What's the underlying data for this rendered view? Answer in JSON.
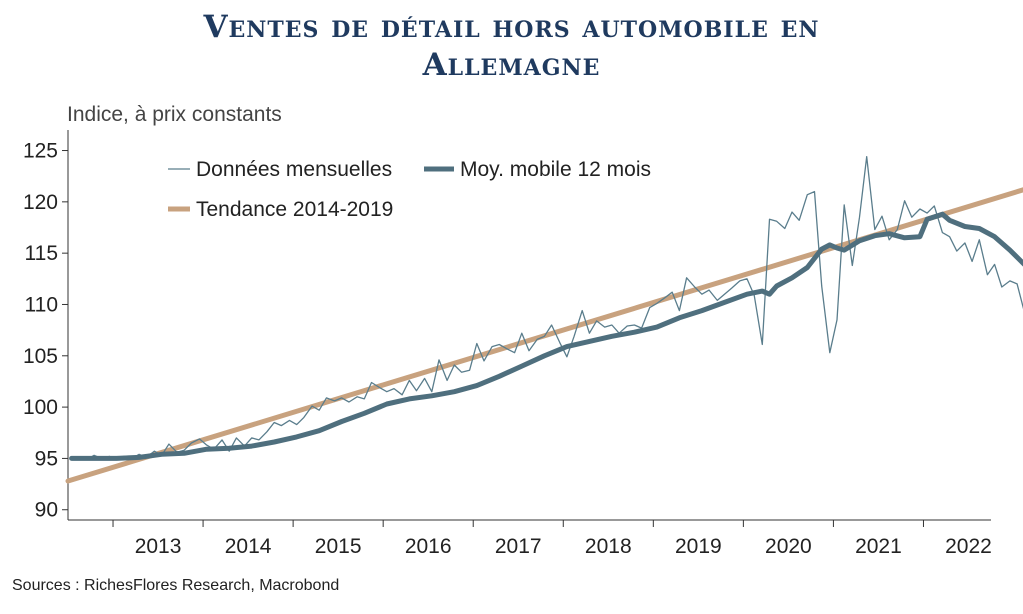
{
  "title_line1": "Ventes de détail hors automobile en",
  "title_line2": "Allemagne",
  "source": "Sources : RichesFlores Research, Macrobond",
  "colors": {
    "title": "#1f3a5f",
    "monthly": "#5a7d8c",
    "ma": "#4f6f7e",
    "trend": "#c8a27f"
  },
  "chart_data": {
    "type": "line",
    "unit_label": "Indice, à prix constants",
    "y_ticks": [
      125,
      120,
      115,
      110,
      105,
      100,
      95,
      90
    ],
    "ylim": [
      89,
      127
    ],
    "x_range": [
      2012.5,
      2022.75
    ],
    "x_ticks": [
      "2013",
      "2014",
      "2015",
      "2016",
      "2017",
      "2018",
      "2019",
      "2020",
      "2021",
      "2022"
    ],
    "legend_position": "top-left",
    "series": [
      {
        "name": "Données mensuelles",
        "style": "thin",
        "points": [
          [
            2012.54,
            95.0
          ],
          [
            2012.62,
            95.1
          ],
          [
            2012.71,
            94.9
          ],
          [
            2012.79,
            95.3
          ],
          [
            2012.87,
            95.0
          ],
          [
            2012.96,
            95.2
          ],
          [
            2013.04,
            94.9
          ],
          [
            2013.12,
            95.2
          ],
          [
            2013.21,
            95.0
          ],
          [
            2013.29,
            95.4
          ],
          [
            2013.37,
            95.1
          ],
          [
            2013.46,
            95.7
          ],
          [
            2013.54,
            95.3
          ],
          [
            2013.62,
            96.4
          ],
          [
            2013.71,
            95.6
          ],
          [
            2013.79,
            95.8
          ],
          [
            2013.87,
            96.5
          ],
          [
            2013.96,
            96.9
          ],
          [
            2014.04,
            96.3
          ],
          [
            2014.12,
            95.9
          ],
          [
            2014.21,
            96.8
          ],
          [
            2014.29,
            95.7
          ],
          [
            2014.37,
            97.0
          ],
          [
            2014.46,
            96.2
          ],
          [
            2014.54,
            97.0
          ],
          [
            2014.62,
            96.8
          ],
          [
            2014.71,
            97.6
          ],
          [
            2014.79,
            98.5
          ],
          [
            2014.87,
            98.2
          ],
          [
            2014.96,
            98.7
          ],
          [
            2015.04,
            98.3
          ],
          [
            2015.12,
            99.0
          ],
          [
            2015.21,
            100.1
          ],
          [
            2015.29,
            99.7
          ],
          [
            2015.37,
            100.9
          ],
          [
            2015.46,
            100.6
          ],
          [
            2015.54,
            100.9
          ],
          [
            2015.62,
            100.5
          ],
          [
            2015.71,
            101.0
          ],
          [
            2015.79,
            100.8
          ],
          [
            2015.87,
            102.4
          ],
          [
            2015.96,
            101.9
          ],
          [
            2016.04,
            101.5
          ],
          [
            2016.12,
            101.8
          ],
          [
            2016.21,
            101.2
          ],
          [
            2016.29,
            102.6
          ],
          [
            2016.37,
            101.6
          ],
          [
            2016.46,
            102.8
          ],
          [
            2016.54,
            101.5
          ],
          [
            2016.62,
            104.6
          ],
          [
            2016.71,
            102.6
          ],
          [
            2016.79,
            104.1
          ],
          [
            2016.87,
            103.4
          ],
          [
            2016.96,
            103.6
          ],
          [
            2017.04,
            106.2
          ],
          [
            2017.12,
            104.5
          ],
          [
            2017.21,
            105.9
          ],
          [
            2017.29,
            106.1
          ],
          [
            2017.37,
            105.7
          ],
          [
            2017.46,
            105.3
          ],
          [
            2017.54,
            107.2
          ],
          [
            2017.62,
            105.5
          ],
          [
            2017.71,
            106.6
          ],
          [
            2017.79,
            106.9
          ],
          [
            2017.87,
            108.0
          ],
          [
            2017.96,
            106.3
          ],
          [
            2018.04,
            104.9
          ],
          [
            2018.12,
            106.9
          ],
          [
            2018.21,
            109.4
          ],
          [
            2018.29,
            107.2
          ],
          [
            2018.37,
            108.4
          ],
          [
            2018.46,
            107.8
          ],
          [
            2018.54,
            108.0
          ],
          [
            2018.62,
            107.2
          ],
          [
            2018.71,
            107.9
          ],
          [
            2018.79,
            108.0
          ],
          [
            2018.87,
            107.7
          ],
          [
            2018.96,
            109.7
          ],
          [
            2019.04,
            110.1
          ],
          [
            2019.12,
            110.6
          ],
          [
            2019.21,
            111.2
          ],
          [
            2019.29,
            109.4
          ],
          [
            2019.37,
            112.6
          ],
          [
            2019.46,
            111.7
          ],
          [
            2019.54,
            111.0
          ],
          [
            2019.62,
            111.4
          ],
          [
            2019.71,
            110.4
          ],
          [
            2019.79,
            111.0
          ],
          [
            2019.87,
            111.6
          ],
          [
            2019.96,
            112.3
          ],
          [
            2020.04,
            112.5
          ],
          [
            2020.12,
            110.9
          ],
          [
            2020.21,
            106.1
          ],
          [
            2020.29,
            118.3
          ],
          [
            2020.37,
            118.1
          ],
          [
            2020.46,
            117.4
          ],
          [
            2020.54,
            119.0
          ],
          [
            2020.62,
            118.2
          ],
          [
            2020.71,
            120.7
          ],
          [
            2020.79,
            121.0
          ],
          [
            2020.87,
            111.8
          ],
          [
            2020.96,
            105.3
          ],
          [
            2021.04,
            108.5
          ],
          [
            2021.12,
            119.7
          ],
          [
            2021.21,
            113.8
          ],
          [
            2021.29,
            118.5
          ],
          [
            2021.37,
            124.4
          ],
          [
            2021.46,
            117.3
          ],
          [
            2021.54,
            118.6
          ],
          [
            2021.62,
            116.3
          ],
          [
            2021.71,
            117.3
          ],
          [
            2021.79,
            120.1
          ],
          [
            2021.87,
            118.5
          ],
          [
            2021.96,
            119.3
          ],
          [
            2022.04,
            118.9
          ],
          [
            2022.12,
            119.6
          ],
          [
            2022.21,
            117.0
          ],
          [
            2022.29,
            116.6
          ],
          [
            2022.37,
            115.2
          ],
          [
            2022.46,
            116.0
          ],
          [
            2022.54,
            114.2
          ],
          [
            2022.62,
            116.3
          ],
          [
            2022.71,
            112.9
          ],
          [
            2022.79,
            113.9
          ],
          [
            2022.87,
            111.7
          ],
          [
            2022.96,
            112.3
          ],
          [
            2023.04,
            112.0
          ],
          [
            2023.12,
            109.3
          ]
        ]
      },
      {
        "name": "Moy. mobile 12 mois",
        "style": "thick",
        "points": [
          [
            2012.54,
            95.0
          ],
          [
            2012.79,
            95.0
          ],
          [
            2013.04,
            95.0
          ],
          [
            2013.29,
            95.1
          ],
          [
            2013.54,
            95.4
          ],
          [
            2013.79,
            95.5
          ],
          [
            2014.04,
            95.9
          ],
          [
            2014.29,
            96.0
          ],
          [
            2014.54,
            96.2
          ],
          [
            2014.79,
            96.6
          ],
          [
            2015.04,
            97.1
          ],
          [
            2015.29,
            97.7
          ],
          [
            2015.54,
            98.6
          ],
          [
            2015.79,
            99.4
          ],
          [
            2016.04,
            100.3
          ],
          [
            2016.29,
            100.8
          ],
          [
            2016.54,
            101.1
          ],
          [
            2016.79,
            101.5
          ],
          [
            2017.04,
            102.1
          ],
          [
            2017.29,
            103.0
          ],
          [
            2017.54,
            104.0
          ],
          [
            2017.79,
            105.0
          ],
          [
            2018.04,
            105.9
          ],
          [
            2018.29,
            106.4
          ],
          [
            2018.54,
            106.9
          ],
          [
            2018.79,
            107.3
          ],
          [
            2019.04,
            107.8
          ],
          [
            2019.29,
            108.7
          ],
          [
            2019.54,
            109.4
          ],
          [
            2019.79,
            110.2
          ],
          [
            2020.04,
            111.0
          ],
          [
            2020.21,
            111.3
          ],
          [
            2020.29,
            111.0
          ],
          [
            2020.37,
            111.8
          ],
          [
            2020.54,
            112.6
          ],
          [
            2020.71,
            113.6
          ],
          [
            2020.87,
            115.4
          ],
          [
            2020.96,
            115.8
          ],
          [
            2021.04,
            115.5
          ],
          [
            2021.12,
            115.3
          ],
          [
            2021.29,
            116.2
          ],
          [
            2021.46,
            116.7
          ],
          [
            2021.62,
            116.9
          ],
          [
            2021.79,
            116.5
          ],
          [
            2021.96,
            116.6
          ],
          [
            2022.04,
            118.3
          ],
          [
            2022.21,
            118.8
          ],
          [
            2022.29,
            118.2
          ],
          [
            2022.46,
            117.6
          ],
          [
            2022.62,
            117.4
          ],
          [
            2022.79,
            116.6
          ],
          [
            2022.96,
            115.3
          ],
          [
            2023.12,
            113.9
          ]
        ]
      },
      {
        "name": "Tendance 2014-2019",
        "style": "trend",
        "points": [
          [
            2012.5,
            92.8
          ],
          [
            2023.12,
            121.2
          ]
        ]
      }
    ]
  }
}
